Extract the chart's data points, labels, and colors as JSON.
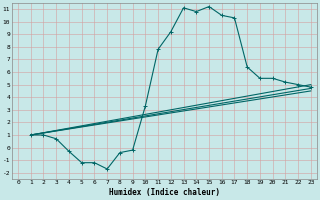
{
  "background_color": "#c8e8e8",
  "grid_color": "#b0c8c8",
  "line_color": "#006666",
  "xlabel": "Humidex (Indice chaleur)",
  "xlim": [
    -0.5,
    23.5
  ],
  "ylim": [
    -2.5,
    11.5
  ],
  "xticks": [
    0,
    1,
    2,
    3,
    4,
    5,
    6,
    7,
    8,
    9,
    10,
    11,
    12,
    13,
    14,
    15,
    16,
    17,
    18,
    19,
    20,
    21,
    22,
    23
  ],
  "yticks": [
    -2,
    -1,
    0,
    1,
    2,
    3,
    4,
    5,
    6,
    7,
    8,
    9,
    10,
    11
  ],
  "main_curve_x": [
    1,
    2,
    3,
    4,
    5,
    6,
    7,
    8,
    9,
    10,
    11,
    12,
    13,
    14,
    15,
    16,
    17,
    18,
    19,
    20,
    21,
    22,
    23
  ],
  "main_curve_y": [
    1.0,
    1.0,
    0.7,
    -0.3,
    -1.2,
    -1.2,
    -1.7,
    -0.4,
    -0.2,
    3.3,
    7.8,
    9.2,
    11.1,
    10.8,
    11.2,
    10.5,
    10.3,
    6.4,
    5.5,
    5.5,
    5.2,
    5.0,
    4.8
  ],
  "line1_x": [
    1,
    23
  ],
  "line1_y": [
    1.0,
    5.0
  ],
  "line2_x": [
    1,
    23
  ],
  "line2_y": [
    1.0,
    4.5
  ],
  "line3_x": [
    1,
    23
  ],
  "line3_y": [
    1.0,
    4.7
  ]
}
